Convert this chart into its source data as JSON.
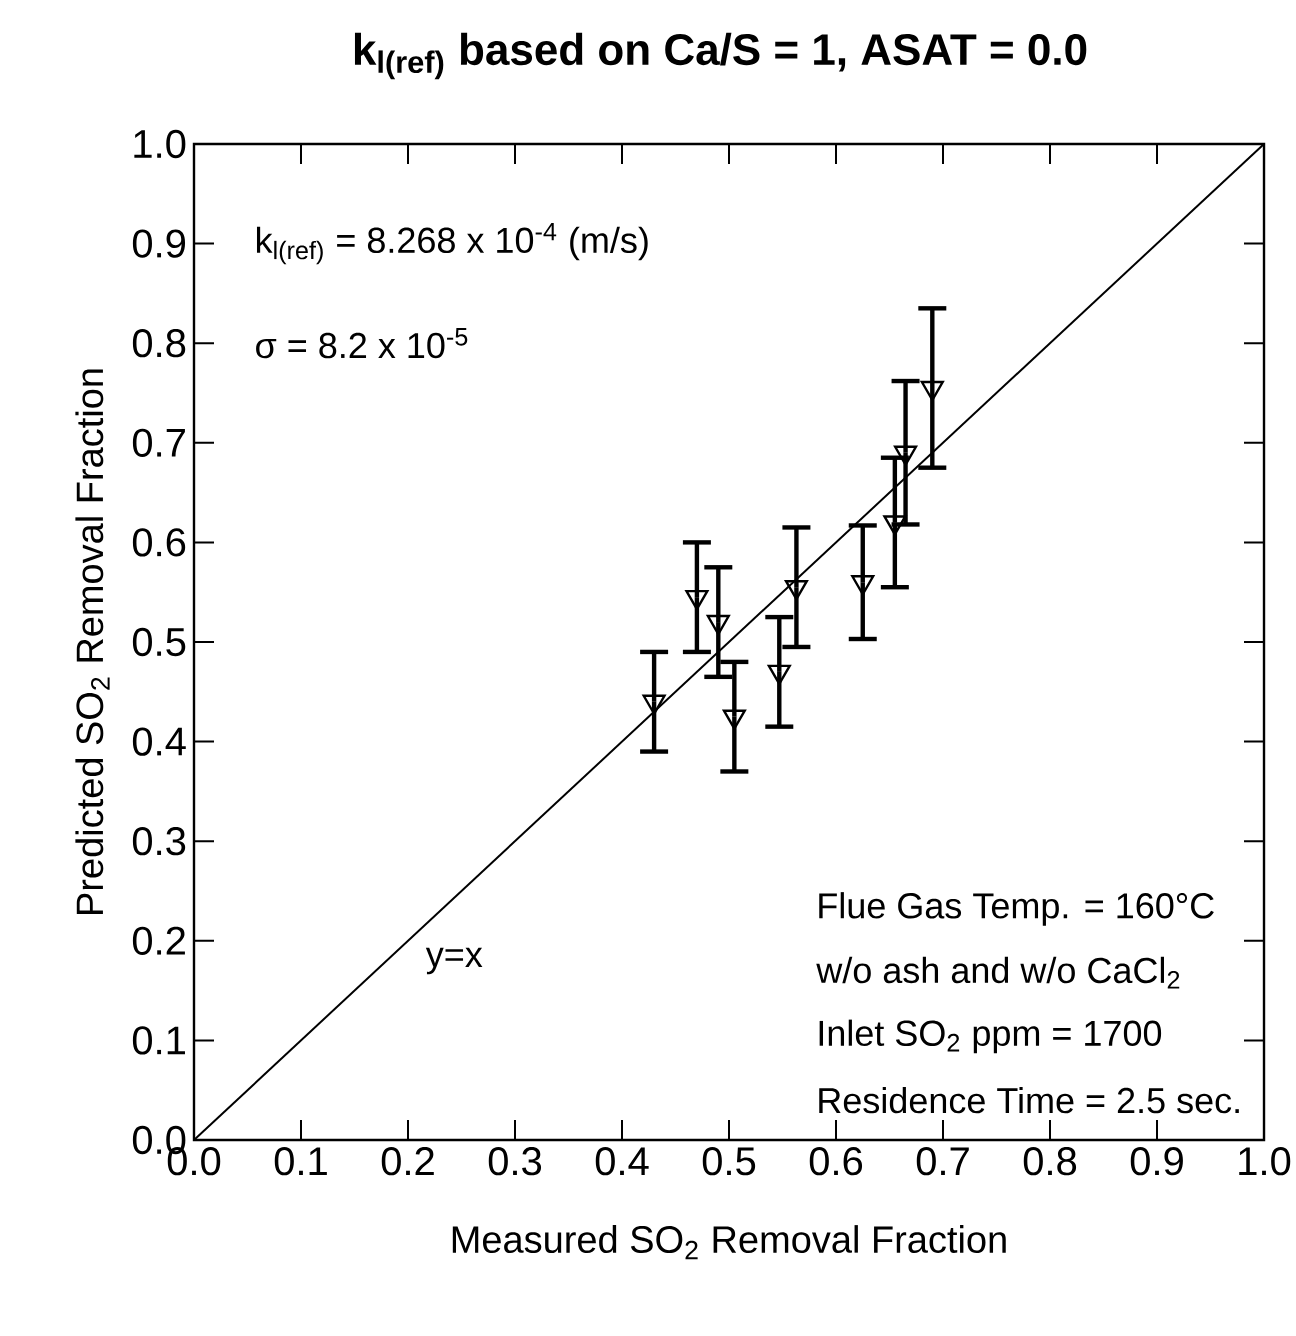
{
  "chart_data": {
    "type": "scatter",
    "title": "k$_{l(ref)}$  based on Ca/S = 1, ASAT = 0.0",
    "xlabel": "Measured SO$_{2}$ Removal Fraction",
    "ylabel": "Predicted SO$_{2}$ Removal Fraction",
    "xlim": [
      0,
      1
    ],
    "ylim": [
      0,
      1
    ],
    "xticks": [
      {
        "value": 0,
        "label": "0.0"
      },
      0.1,
      0.2,
      0.3,
      0.4,
      0.5,
      0.6,
      0.7,
      0.8,
      0.9,
      {
        "value": 1,
        "label": "1.0"
      }
    ],
    "yticks": [
      {
        "value": 0,
        "label": "0.0"
      },
      0.1,
      0.2,
      0.3,
      0.4,
      0.5,
      0.6,
      0.7,
      0.8,
      0.9,
      {
        "value": 1,
        "label": "1.0"
      }
    ],
    "marker": "triangle",
    "series": [
      {
        "color": "#000000",
        "x": [
          0.43,
          0.47,
          0.49,
          0.505,
          0.547,
          0.563,
          0.625,
          0.655,
          0.665,
          0.69
        ],
        "values": [
          0.44,
          0.545,
          0.52,
          0.425,
          0.47,
          0.555,
          0.56,
          0.62,
          0.69,
          0.755
        ],
        "errors": [
          0.05,
          0.055,
          0.055,
          0.055,
          0.055,
          0.06,
          0.057,
          0.065,
          0.072,
          0.08
        ]
      },
      {
        "type": "line",
        "name": "y=x",
        "color": "#000000",
        "x": [
          0,
          1
        ],
        "values": [
          0,
          1
        ],
        "marker": "none"
      }
    ],
    "annotations": [
      "k$_{l(ref)}$ = 8.268 x 10$^{-4}$ (m/s)",
      "σ = 8.2 x 10$^{-5}$",
      "Flue Gas Temp. = 160°C",
      "w/o ash and w/o CaCl$_{2}$",
      "Inlet SO$_{2}$ ppm = 1700",
      "Residence Time = 2.5 sec."
    ]
  }
}
